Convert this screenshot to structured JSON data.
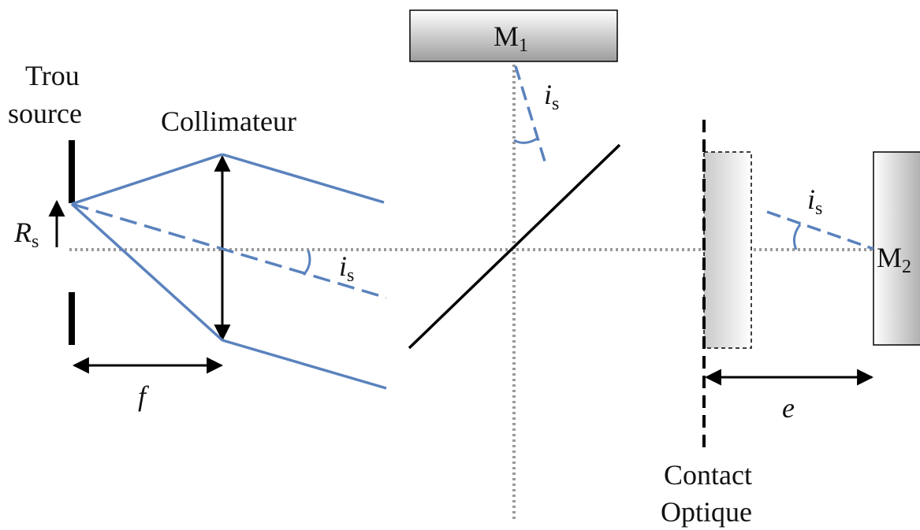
{
  "labels": {
    "source_line1": "Trou",
    "source_line2": "source",
    "collimator": "Collimateur",
    "radius_symbol": "R",
    "radius_sub": "s",
    "angle_symbol": "i",
    "angle_sub": "s",
    "focal": "f",
    "mirror1_main": "M",
    "mirror1_sub": "1",
    "mirror2_main": "M",
    "mirror2_sub": "2",
    "thickness": "e",
    "contact_line1": "Contact",
    "contact_line2": "Optique"
  },
  "colors": {
    "ray": "#5a82bd",
    "ink": "#000000",
    "axis": "#9a9a9a",
    "mirror_fill_light": "#ffffff",
    "mirror_fill_dark": "#9c9c9c"
  }
}
